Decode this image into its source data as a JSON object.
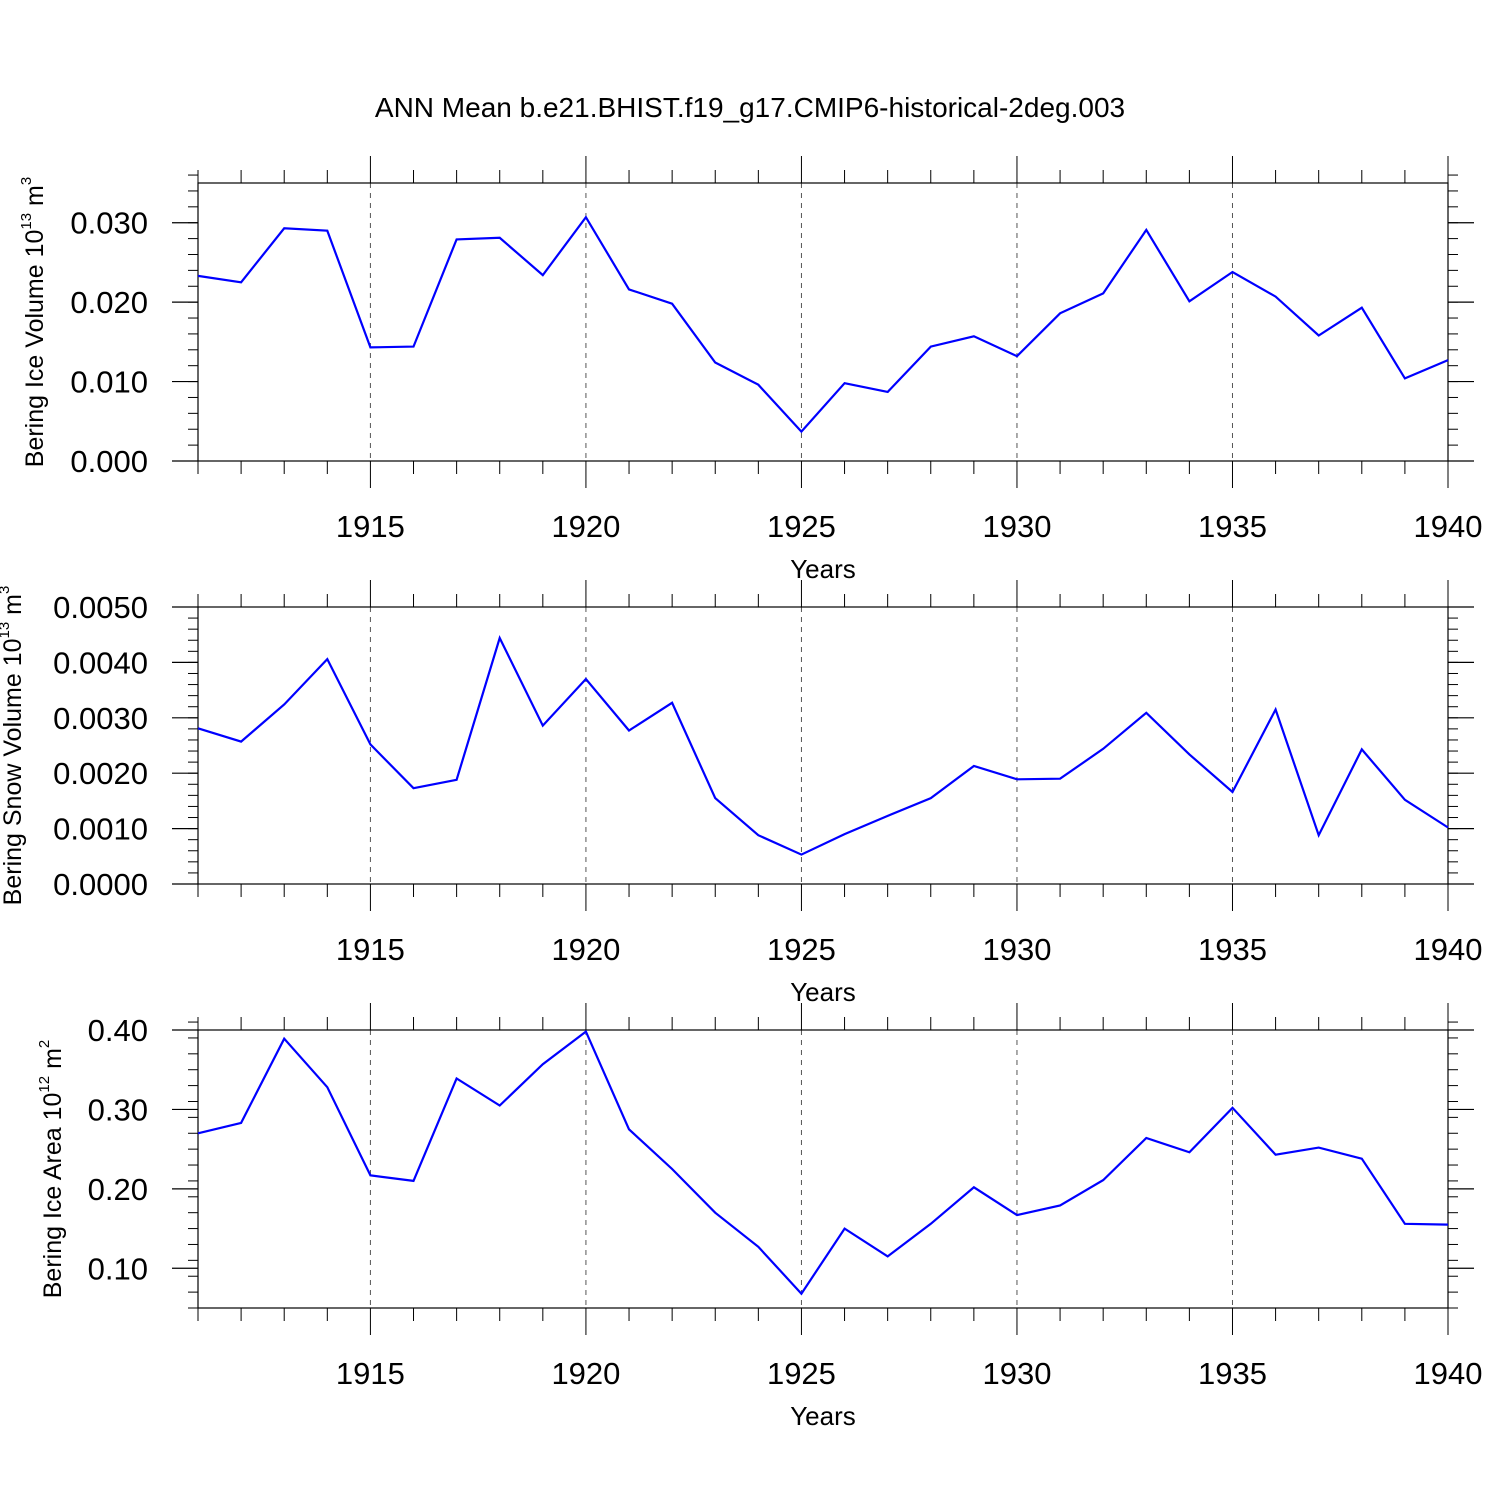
{
  "title": "ANN Mean b.e21.BHIST.f19_g17.CMIP6-historical-2deg.003",
  "chart_data": [
    {
      "type": "line",
      "title": "ANN Mean b.e21.BHIST.f19_g17.CMIP6-historical-2deg.003",
      "xlabel": "Years",
      "ylabel": {
        "text": "Bering Ice Volume 10",
        "exponent": "13",
        "unit": "m",
        "unit_exponent": "3"
      },
      "x": [
        1911,
        1912,
        1913,
        1914,
        1915,
        1916,
        1917,
        1918,
        1919,
        1920,
        1921,
        1922,
        1923,
        1924,
        1925,
        1926,
        1927,
        1928,
        1929,
        1930,
        1931,
        1932,
        1933,
        1934,
        1935,
        1936,
        1937,
        1938,
        1939,
        1940
      ],
      "series": [
        {
          "color": "#0000ff",
          "values": [
            0.0233,
            0.0225,
            0.0293,
            0.029,
            0.0143,
            0.0144,
            0.0279,
            0.0281,
            0.0234,
            0.0307,
            0.0216,
            0.0198,
            0.0124,
            0.0096,
            0.0037,
            0.0098,
            0.0087,
            0.0144,
            0.0157,
            0.0132,
            0.0186,
            0.0211,
            0.0291,
            0.0201,
            0.0238,
            0.0207,
            0.0158,
            0.0193,
            0.0104,
            0.0127
          ]
        }
      ],
      "xlim": [
        1911,
        1940
      ],
      "ylim": [
        0,
        0.035
      ],
      "xticks": [
        1915,
        1920,
        1925,
        1930,
        1935,
        1940
      ],
      "xtick_labels": [
        "1915",
        "1920",
        "1925",
        "1930",
        "1935",
        "1940"
      ],
      "yticks": [
        0,
        0.01,
        0.02,
        0.03
      ],
      "ytick_labels": [
        "0.000",
        "0.010",
        "0.020",
        "0.030"
      ],
      "yminor_step": 0.002,
      "grid": "vertical dashed at major x ticks"
    },
    {
      "type": "line",
      "xlabel": "Years",
      "ylabel": {
        "text": "Bering Snow Volume 10",
        "exponent": "13",
        "unit": "m",
        "unit_exponent": "3"
      },
      "x": [
        1911,
        1912,
        1913,
        1914,
        1915,
        1916,
        1917,
        1918,
        1919,
        1920,
        1921,
        1922,
        1923,
        1924,
        1925,
        1926,
        1927,
        1928,
        1929,
        1930,
        1931,
        1932,
        1933,
        1934,
        1935,
        1936,
        1937,
        1938,
        1939,
        1940
      ],
      "series": [
        {
          "color": "#0000ff",
          "values": [
            0.00281,
            0.00257,
            0.00324,
            0.00406,
            0.00252,
            0.00173,
            0.00188,
            0.00444,
            0.00286,
            0.0037,
            0.00277,
            0.00327,
            0.00155,
            0.00088,
            0.00053,
            0.0009,
            0.00123,
            0.00155,
            0.00213,
            0.00189,
            0.0019,
            0.00244,
            0.00309,
            0.00234,
            0.00166,
            0.00315,
            0.00088,
            0.00243,
            0.00152,
            0.00102
          ]
        }
      ],
      "xlim": [
        1911,
        1940
      ],
      "ylim": [
        0,
        0.005
      ],
      "xticks": [
        1915,
        1920,
        1925,
        1930,
        1935,
        1940
      ],
      "xtick_labels": [
        "1915",
        "1920",
        "1925",
        "1930",
        "1935",
        "1940"
      ],
      "yticks": [
        0,
        0.001,
        0.002,
        0.003,
        0.004,
        0.005
      ],
      "ytick_labels": [
        "0.0000",
        "0.0010",
        "0.0020",
        "0.0030",
        "0.0040",
        "0.0050"
      ],
      "yminor_step": 0.0002,
      "grid": "vertical dashed at major x ticks"
    },
    {
      "type": "line",
      "xlabel": "Years",
      "ylabel": {
        "text": "Bering Ice Area 10",
        "exponent": "12",
        "unit": "m",
        "unit_exponent": "2"
      },
      "x": [
        1911,
        1912,
        1913,
        1914,
        1915,
        1916,
        1917,
        1918,
        1919,
        1920,
        1921,
        1922,
        1923,
        1924,
        1925,
        1926,
        1927,
        1928,
        1929,
        1930,
        1931,
        1932,
        1933,
        1934,
        1935,
        1936,
        1937,
        1938,
        1939,
        1940
      ],
      "series": [
        {
          "color": "#0000ff",
          "values": [
            0.27,
            0.283,
            0.389,
            0.328,
            0.217,
            0.21,
            0.339,
            0.305,
            0.357,
            0.398,
            0.275,
            0.225,
            0.17,
            0.127,
            0.068,
            0.15,
            0.115,
            0.156,
            0.202,
            0.167,
            0.179,
            0.211,
            0.264,
            0.246,
            0.302,
            0.243,
            0.252,
            0.238,
            0.156,
            0.155
          ]
        }
      ],
      "xlim": [
        1911,
        1940
      ],
      "ylim": [
        0.05,
        0.4
      ],
      "xticks": [
        1915,
        1920,
        1925,
        1930,
        1935,
        1940
      ],
      "xtick_labels": [
        "1915",
        "1920",
        "1925",
        "1930",
        "1935",
        "1940"
      ],
      "yticks": [
        0.1,
        0.2,
        0.3,
        0.4
      ],
      "ytick_labels": [
        "0.10",
        "0.20",
        "0.30",
        "0.40"
      ],
      "yminor_step": 0.02,
      "grid": "vertical dashed at major x ticks"
    }
  ]
}
